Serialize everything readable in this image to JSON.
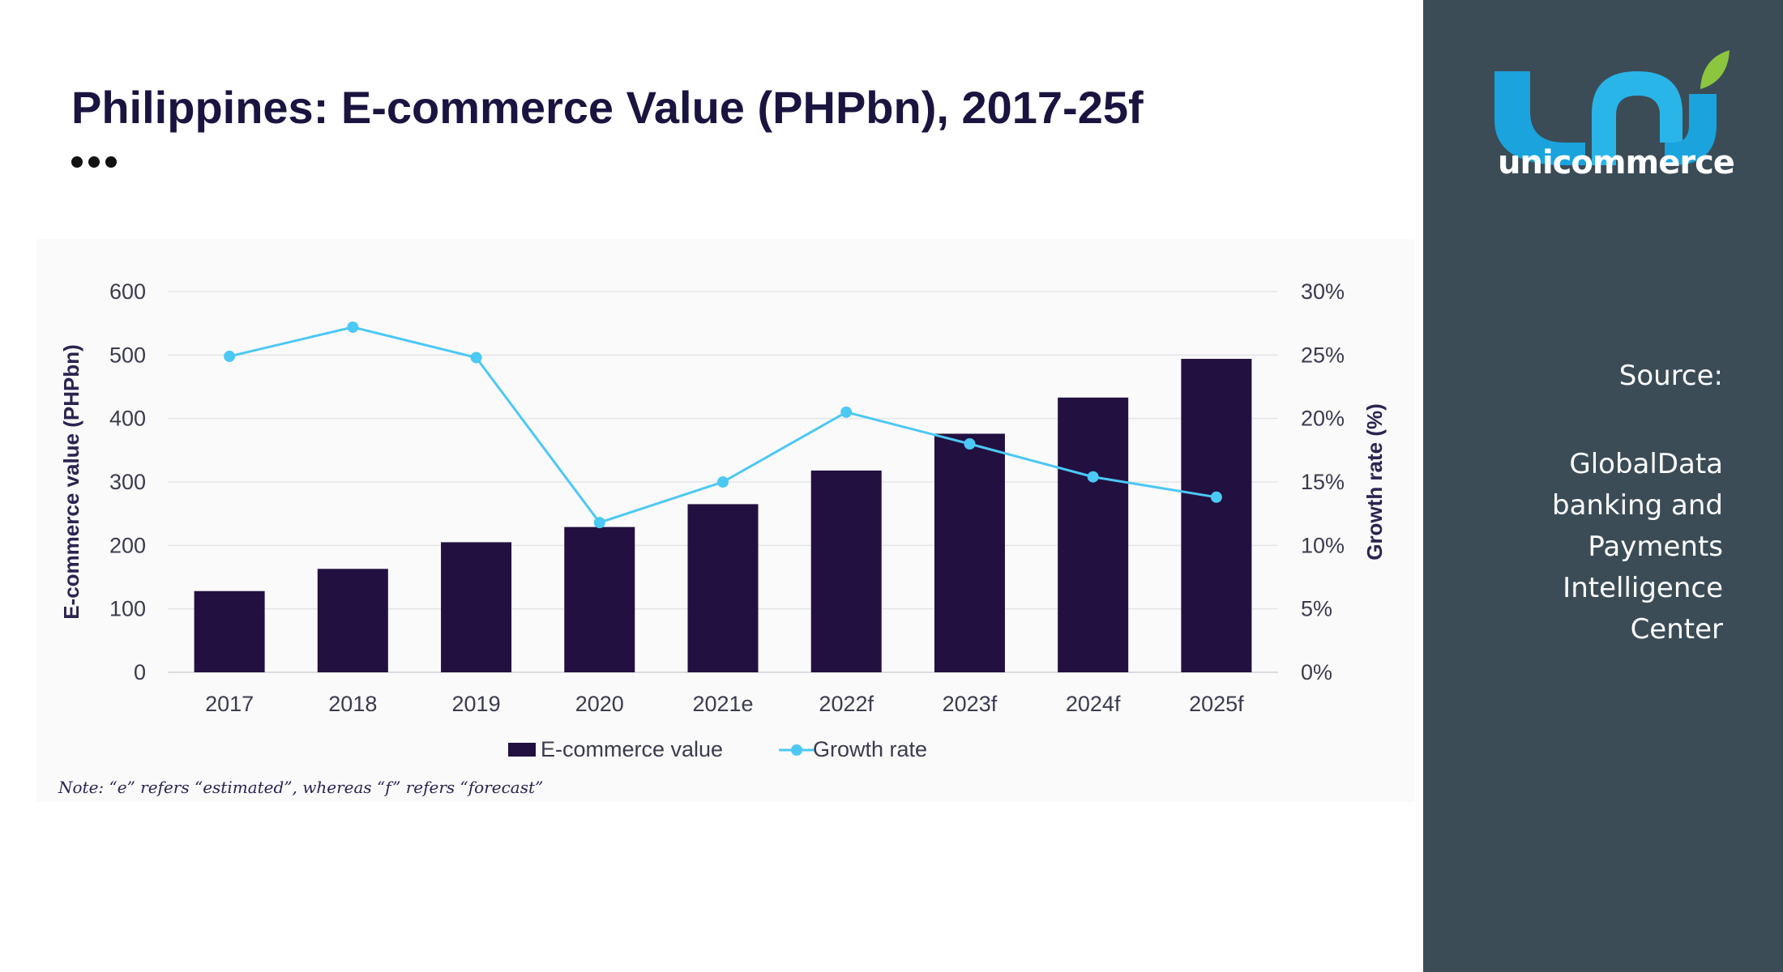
{
  "title": "Philippines: E-commerce Value (PHPbn), 2017-25f",
  "note": "Note: “e” refers “estimated”, whereas “f” refers “forecast”",
  "source": {
    "label": "Source:",
    "text": "GlobalData banking and Payments Intelligence Center"
  },
  "logo": {
    "wordmark": "unicommerce",
    "icon_name": "unicommerce-logo-icon",
    "colors": {
      "primary": "#1aa3dd",
      "leaf": "#8cc63f"
    }
  },
  "colors": {
    "bar": "#221040",
    "line": "#4cc8f4",
    "sidebar": "#3b4c57",
    "title": "#1a1440"
  },
  "chart_data": {
    "type": "bar",
    "categories": [
      "2017",
      "2018",
      "2019",
      "2020",
      "2021e",
      "2022f",
      "2023f",
      "2024f",
      "2025f"
    ],
    "series": [
      {
        "name": "E-commerce value",
        "type": "bar",
        "axis": "left",
        "values": [
          128,
          163,
          205,
          229,
          265,
          318,
          376,
          433,
          494
        ]
      },
      {
        "name": "Growth rate",
        "type": "line",
        "axis": "right",
        "values": [
          24.9,
          27.2,
          24.8,
          11.8,
          15.0,
          20.5,
          18.0,
          15.4,
          13.8
        ]
      }
    ],
    "ylabel": "E-commerce value (PHPbn)",
    "ylim": [
      0,
      600
    ],
    "yticks": [
      0,
      100,
      200,
      300,
      400,
      500,
      600
    ],
    "y2label": "Growth rate (%)",
    "y2lim": [
      0,
      30
    ],
    "y2ticks": [
      "0%",
      "5%",
      "10%",
      "15%",
      "20%",
      "25%",
      "30%"
    ],
    "grid": true,
    "legend": "bottom"
  }
}
